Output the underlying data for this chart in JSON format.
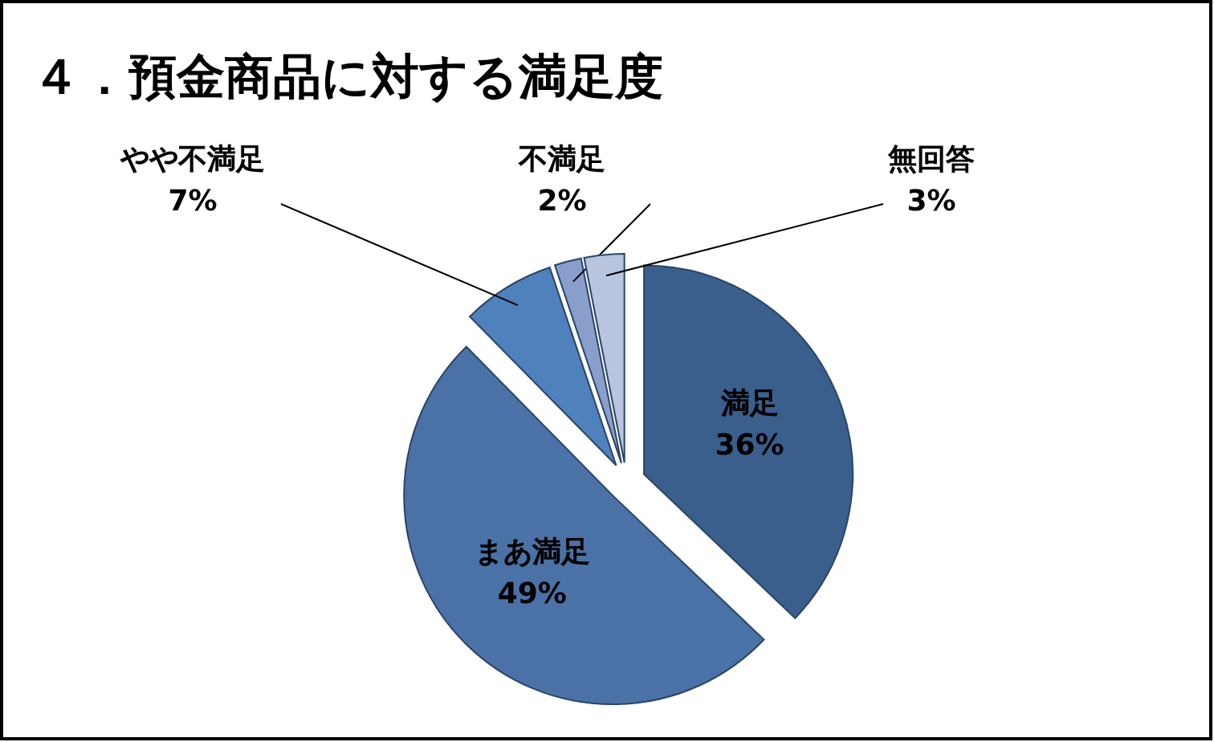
{
  "chart_data": {
    "type": "pie",
    "title": "４．預金商品に対する満足度",
    "categories": [
      "満足",
      "まあ満足",
      "やや不満足",
      "不満足",
      "無回答"
    ],
    "values": [
      36,
      49,
      7,
      2,
      3
    ],
    "colors": [
      "#3b5f8c",
      "#4a72a6",
      "#4f81bd",
      "#8a9ecb",
      "#b9c5df"
    ],
    "value_labels": [
      "36%",
      "49%",
      "7%",
      "2%",
      "3%"
    ]
  }
}
